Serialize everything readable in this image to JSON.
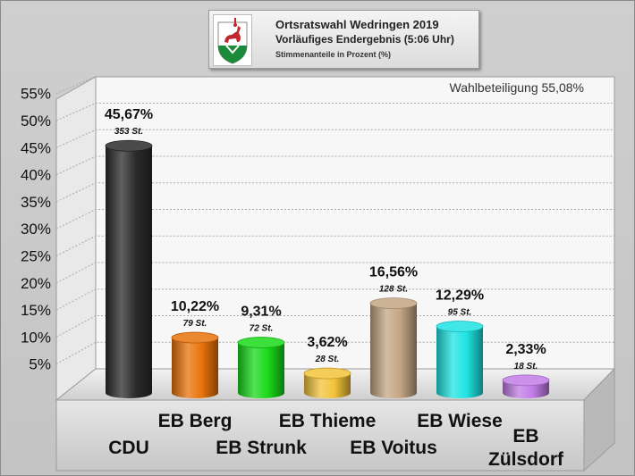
{
  "header": {
    "title": "Ortsratswahl Wedringen 2019",
    "subtitle": "Vorläufiges Endergebnis (5:06 Uhr)",
    "caption": "Stimmenanteile in Prozent (%)",
    "logo_icon": "coat-of-arms-icon"
  },
  "turnout": "Wahlbeteiligung 55,08%",
  "chart_data": {
    "type": "bar",
    "categories": [
      "CDU",
      "EB Berg",
      "EB Strunk",
      "EB Thieme",
      "EB Voitus",
      "EB Wiese",
      "EB Zülsdorf"
    ],
    "category_lines": [
      [
        "CDU"
      ],
      [
        "EB Berg"
      ],
      [
        "EB Strunk"
      ],
      [
        "EB Thieme"
      ],
      [
        "EB Voitus"
      ],
      [
        "EB Wiese"
      ],
      [
        "EB",
        "Zülsdorf"
      ]
    ],
    "values": [
      45.67,
      10.22,
      9.31,
      3.62,
      16.56,
      12.29,
      2.33
    ],
    "value_labels": [
      "45,67%",
      "10,22%",
      "9,31%",
      "3,62%",
      "16,56%",
      "12,29%",
      "2,33%"
    ],
    "votes": [
      "353 St.",
      "79 St.",
      "72 St.",
      "28 St.",
      "128 St.",
      "95 St.",
      "18 St."
    ],
    "colors": [
      "#2b2b2b",
      "#e8730a",
      "#19d919",
      "#f2c33a",
      "#c4a584",
      "#1fe3e3",
      "#c27ce6"
    ],
    "y_ticks": [
      "5%",
      "10%",
      "15%",
      "20%",
      "25%",
      "30%",
      "35%",
      "40%",
      "45%",
      "50%",
      "55%"
    ],
    "ylim": [
      0,
      55
    ],
    "grid": true,
    "legend": "none"
  }
}
